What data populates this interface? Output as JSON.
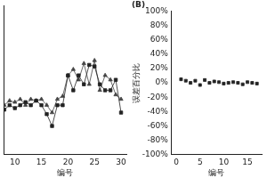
{
  "chart_data": [
    {
      "type": "line",
      "x_label": "编号",
      "x": [
        8,
        9,
        10,
        11,
        12,
        13,
        14,
        15,
        16,
        17,
        18,
        19,
        20,
        21,
        22,
        23,
        24,
        25,
        26,
        27,
        28,
        29,
        30
      ],
      "series": [
        {
          "color": "#222222",
          "marker": "square",
          "values": [
            30,
            33,
            31,
            33,
            35,
            33,
            36,
            33,
            27,
            19,
            33,
            33,
            53,
            43,
            53,
            47,
            60,
            59,
            47,
            43,
            43,
            50,
            28
          ]
        },
        {
          "color": "#444444",
          "marker": "triangle",
          "values": [
            33,
            36,
            35,
            37,
            33,
            37,
            36,
            37,
            33,
            28,
            37,
            39,
            53,
            57,
            50,
            61,
            47,
            63,
            43,
            53,
            50,
            40,
            37
          ]
        }
      ],
      "xlim": [
        8,
        31
      ],
      "xticks": [
        10,
        15,
        20,
        25,
        30
      ],
      "ylim": [
        0,
        100
      ],
      "tick_labels": "x",
      "grid": false
    },
    {
      "type": "scatter",
      "title": "(B)",
      "x_label": "编号",
      "y_label": "误差百分比",
      "x": [
        1,
        2,
        3,
        4,
        5,
        6,
        7,
        8,
        9,
        10,
        11,
        12,
        13,
        14,
        15,
        16,
        17
      ],
      "values": [
        5,
        3,
        0,
        3,
        -3,
        4,
        0,
        2,
        1,
        -1,
        0,
        1,
        0,
        -2,
        1,
        0,
        -1
      ],
      "color": "#222222",
      "marker": "square",
      "xlim": [
        -1,
        18
      ],
      "xticks": [
        0,
        5,
        10,
        15
      ],
      "ylim": [
        -100,
        100
      ],
      "yticks": [
        {
          "value": -100,
          "label": "-100%"
        },
        {
          "value": -80,
          "label": "-80%"
        },
        {
          "value": -60,
          "label": "-60%"
        },
        {
          "value": -40,
          "label": "-40%"
        },
        {
          "value": -20,
          "label": "-20%"
        },
        {
          "value": 0,
          "label": "0%"
        },
        {
          "value": 20,
          "label": "20%"
        },
        {
          "value": 40,
          "label": "40%"
        },
        {
          "value": 60,
          "label": "60%"
        },
        {
          "value": 80,
          "label": "80%"
        },
        {
          "value": 100,
          "label": "100%"
        }
      ],
      "grid": false
    }
  ]
}
